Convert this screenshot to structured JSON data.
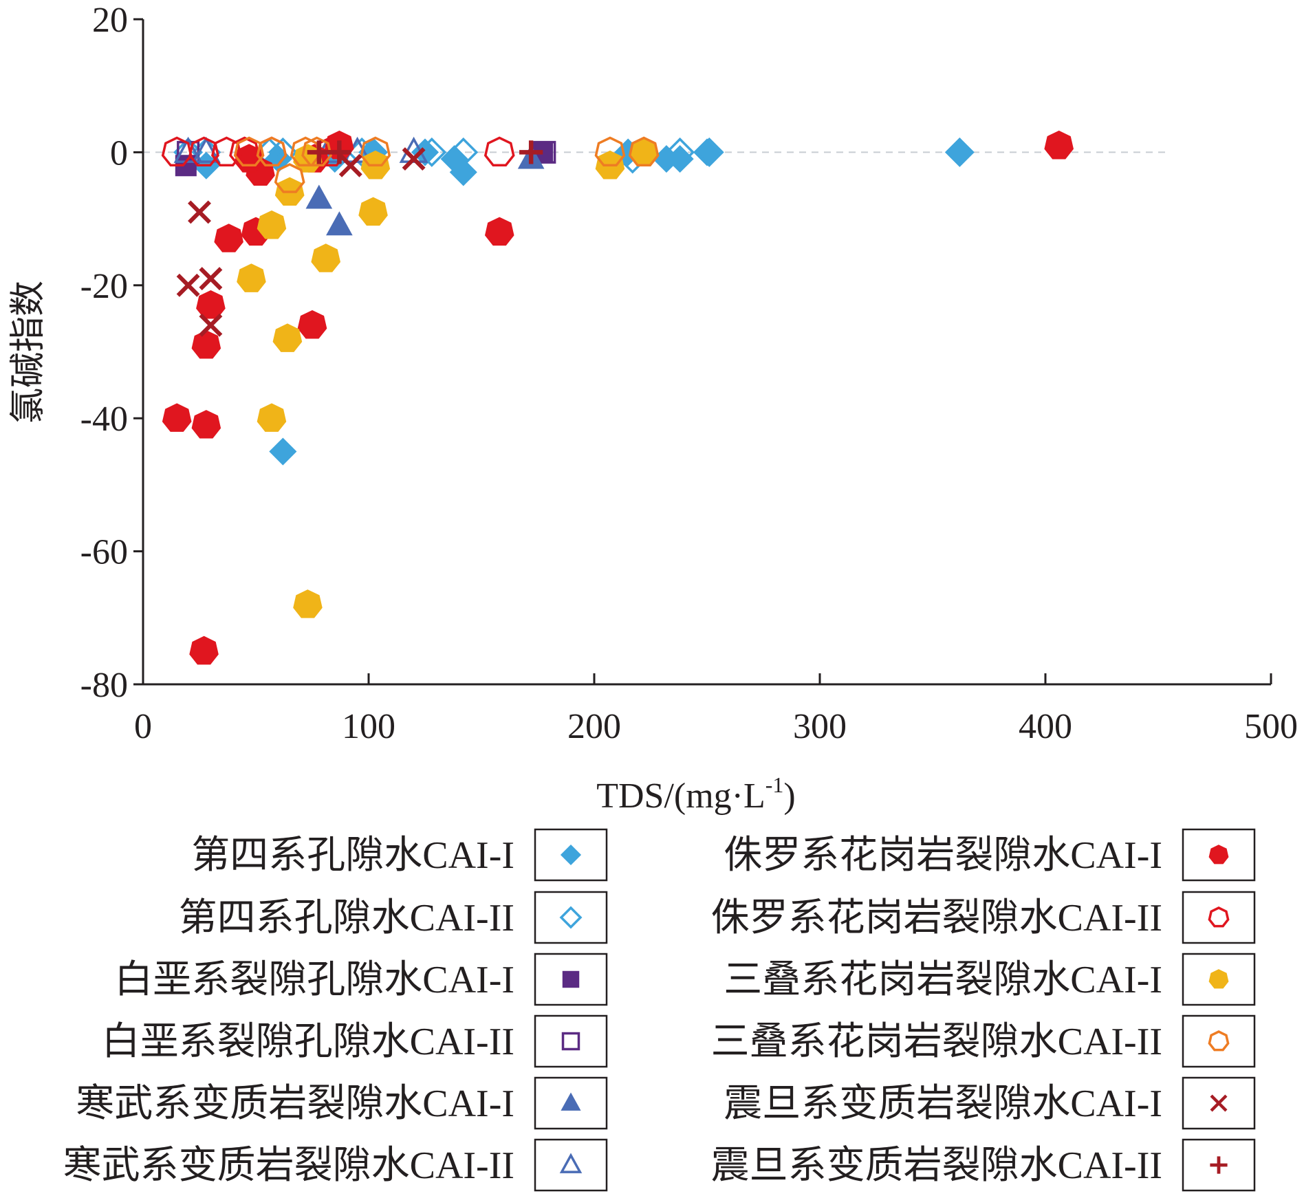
{
  "chart_data": {
    "type": "scatter",
    "xlabel": "TDS/(mg·L",
    "xlabel_sup": "-1",
    "xlabel_tail": ")",
    "ylabel": "氯碱指数",
    "xlim": [
      0,
      500
    ],
    "ylim": [
      -80,
      20
    ],
    "x_ticks": [
      0,
      100,
      200,
      300,
      400,
      500
    ],
    "y_ticks": [
      20,
      0,
      -20,
      -40,
      -60,
      -80
    ],
    "grid": false,
    "reference_line": {
      "y": 0,
      "style": "dashed",
      "color": "#c8cdd2"
    },
    "legend_position": "bottom",
    "series": [
      {
        "name": "第四系孔隙水CAI-I",
        "marker": "diamond",
        "filled": true,
        "color": "#3ea4dc",
        "points": [
          [
            28,
            -2
          ],
          [
            62,
            -45
          ],
          [
            60,
            -1
          ],
          [
            85,
            -1
          ],
          [
            125,
            0
          ],
          [
            138,
            -1
          ],
          [
            142,
            -3
          ],
          [
            215,
            0
          ],
          [
            232,
            -1
          ],
          [
            238,
            -1
          ],
          [
            250,
            0
          ],
          [
            362,
            0
          ],
          [
            102,
            0
          ]
        ]
      },
      {
        "name": "第四系孔隙水CAI-II",
        "marker": "diamond",
        "filled": false,
        "color": "#3ea4dc",
        "points": [
          [
            20,
            0
          ],
          [
            28,
            0
          ],
          [
            56,
            0
          ],
          [
            62,
            0
          ],
          [
            97,
            0
          ],
          [
            102,
            0
          ],
          [
            128,
            0
          ],
          [
            142,
            0
          ],
          [
            217,
            -1
          ],
          [
            238,
            0
          ],
          [
            251,
            0
          ],
          [
            362,
            0
          ]
        ]
      },
      {
        "name": "白垩系裂隙孔隙水CAI-I",
        "marker": "square",
        "filled": true,
        "color": "#5b2b83",
        "points": [
          [
            19,
            -2
          ],
          [
            177,
            0
          ]
        ]
      },
      {
        "name": "白垩系裂隙孔隙水CAI-II",
        "marker": "square",
        "filled": false,
        "color": "#5b2b83",
        "points": [
          [
            20,
            0
          ],
          [
            178,
            0
          ]
        ]
      },
      {
        "name": "寒武系变质岩裂隙水CAI-I",
        "marker": "triangle",
        "filled": true,
        "color": "#4a6cb5",
        "points": [
          [
            78,
            -7
          ],
          [
            87,
            -11
          ],
          [
            172,
            -1
          ]
        ]
      },
      {
        "name": "寒武系变质岩裂隙水CAI-II",
        "marker": "triangle",
        "filled": false,
        "color": "#4a6cb5",
        "points": [
          [
            20,
            0
          ],
          [
            28,
            0
          ],
          [
            82,
            0
          ],
          [
            95,
            0
          ],
          [
            120,
            0
          ]
        ]
      },
      {
        "name": "侏罗系花岗岩裂隙水CAI-I",
        "marker": "heptagon",
        "filled": true,
        "color": "#e0161f",
        "points": [
          [
            15,
            -40
          ],
          [
            28,
            -41
          ],
          [
            27,
            -75
          ],
          [
            28,
            -29
          ],
          [
            30,
            -23
          ],
          [
            38,
            -13
          ],
          [
            50,
            -12
          ],
          [
            52,
            -3
          ],
          [
            47,
            -1
          ],
          [
            75,
            -26
          ],
          [
            76,
            -1
          ],
          [
            87,
            1
          ],
          [
            158,
            -12
          ],
          [
            406,
            1
          ]
        ]
      },
      {
        "name": "侏罗系花岗岩裂隙水CAI-II",
        "marker": "heptagon",
        "filled": false,
        "color": "#e0161f",
        "points": [
          [
            15,
            0
          ],
          [
            27,
            0
          ],
          [
            37,
            0
          ],
          [
            45,
            0
          ],
          [
            57,
            0
          ],
          [
            83,
            0
          ],
          [
            158,
            0
          ]
        ]
      },
      {
        "name": "三叠系花岗岩裂隙水CAI-I",
        "marker": "heptagon",
        "filled": true,
        "color": "#f0b418",
        "points": [
          [
            48,
            -19
          ],
          [
            57,
            -40
          ],
          [
            57,
            -11
          ],
          [
            64,
            -28
          ],
          [
            65,
            -6
          ],
          [
            73,
            -68
          ],
          [
            73,
            -1
          ],
          [
            81,
            -16
          ],
          [
            102,
            -9
          ],
          [
            103,
            -2
          ],
          [
            207,
            -2
          ],
          [
            222,
            0
          ]
        ]
      },
      {
        "name": "三叠系花岗岩裂隙水CAI-II",
        "marker": "heptagon",
        "filled": false,
        "color": "#ee7c23",
        "points": [
          [
            47,
            0
          ],
          [
            57,
            0
          ],
          [
            65,
            -4
          ],
          [
            72,
            0
          ],
          [
            77,
            0
          ],
          [
            103,
            0
          ],
          [
            207,
            0
          ],
          [
            222,
            0
          ]
        ]
      },
      {
        "name": "震旦系变质岩裂隙水CAI-I",
        "marker": "cross",
        "filled": true,
        "color": "#a61c24",
        "points": [
          [
            25,
            -9
          ],
          [
            20,
            -20
          ],
          [
            30,
            -19
          ],
          [
            30,
            -26
          ],
          [
            92,
            -2
          ],
          [
            120,
            -1
          ]
        ]
      },
      {
        "name": "震旦系变质岩裂隙水CAI-II",
        "marker": "plus",
        "filled": true,
        "color": "#a61c24",
        "points": [
          [
            78,
            0
          ],
          [
            87,
            0
          ],
          [
            172,
            0
          ]
        ]
      }
    ]
  }
}
